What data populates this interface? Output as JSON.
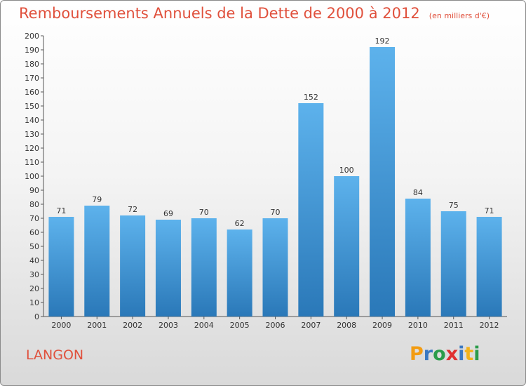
{
  "title": "Remboursements Annuels de la Dette de 2000 à 2012",
  "unit_note": "(en milliers d'€)",
  "town": "LANGON",
  "brand": {
    "letters": [
      "P",
      "r",
      "o",
      "x",
      "i",
      "t",
      "i"
    ],
    "colors": [
      "#f39c12",
      "#3a78c2",
      "#2b9c4a",
      "#e03030",
      "#3a78c2",
      "#f3b21a",
      "#2b9c4a"
    ]
  },
  "colors": {
    "bar_top": "#5db2ec",
    "bar_bottom": "#2a78b8",
    "title": "#e0503c"
  },
  "chart_data": {
    "type": "bar",
    "categories": [
      "2000",
      "2001",
      "2002",
      "2003",
      "2004",
      "2005",
      "2006",
      "2007",
      "2008",
      "2009",
      "2010",
      "2011",
      "2012"
    ],
    "values": [
      71,
      79,
      72,
      69,
      70,
      62,
      70,
      152,
      100,
      192,
      84,
      75,
      71
    ],
    "ylim": [
      0,
      200
    ],
    "ytick_step": 10,
    "grid": false
  }
}
